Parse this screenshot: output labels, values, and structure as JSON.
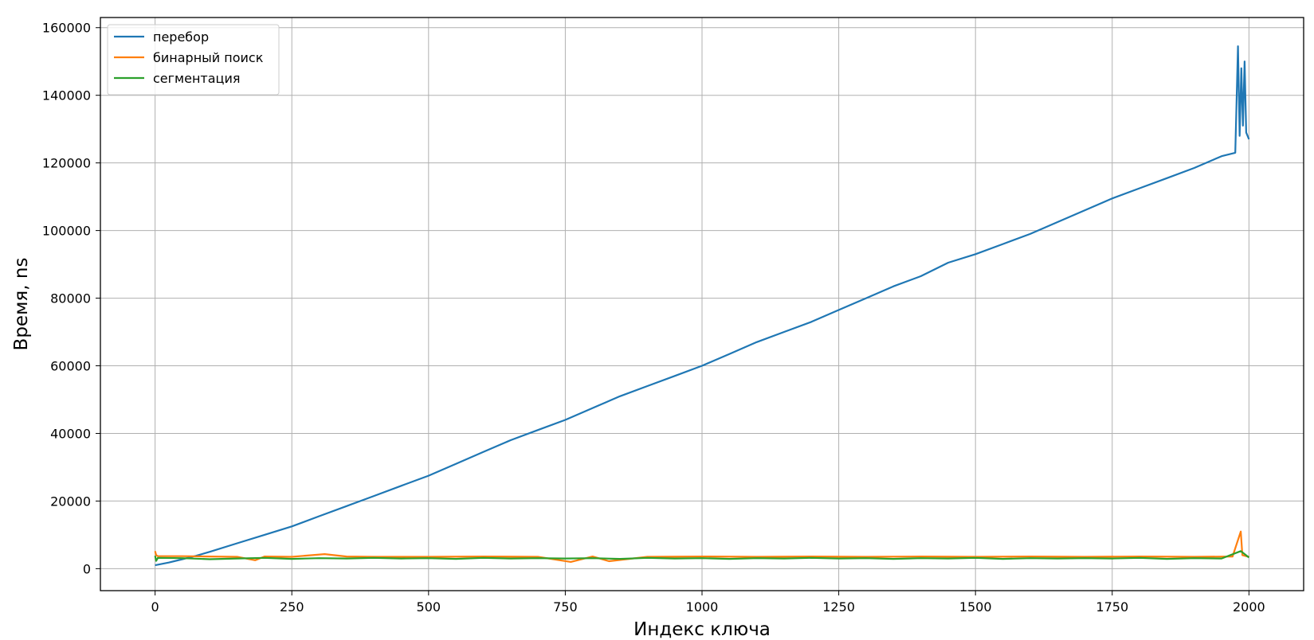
{
  "chart_data": {
    "type": "line",
    "xlabel": "Индекс ключа",
    "ylabel": "Время, ns",
    "xlim": [
      -100,
      2100
    ],
    "ylim": [
      -6500,
      163000
    ],
    "xticks": [
      0,
      250,
      500,
      750,
      1000,
      1250,
      1500,
      1750,
      2000
    ],
    "yticks": [
      0,
      20000,
      40000,
      60000,
      80000,
      100000,
      120000,
      140000,
      160000
    ],
    "xtick_labels": [
      "0",
      "250",
      "500",
      "750",
      "1000",
      "1250",
      "1500",
      "1750",
      "2000"
    ],
    "ytick_labels": [
      "0",
      "20000",
      "40000",
      "60000",
      "80000",
      "100000",
      "120000",
      "140000",
      "160000"
    ],
    "grid": true,
    "legend_position": "top-left",
    "series": [
      {
        "name": "перебор",
        "color": "#1f77b4",
        "x": [
          0,
          25,
          50,
          75,
          100,
          150,
          200,
          250,
          300,
          350,
          400,
          450,
          500,
          550,
          600,
          650,
          700,
          750,
          800,
          850,
          900,
          950,
          1000,
          1050,
          1100,
          1150,
          1200,
          1250,
          1300,
          1350,
          1400,
          1450,
          1500,
          1550,
          1600,
          1650,
          1700,
          1750,
          1800,
          1850,
          1900,
          1950,
          1975,
          1980,
          1983,
          1986,
          1989,
          1992,
          1995,
          2000
        ],
        "y": [
          1000,
          1800,
          2800,
          3800,
          5000,
          7500,
          10000,
          12500,
          15500,
          18500,
          21500,
          24500,
          27500,
          31000,
          34500,
          38000,
          41000,
          44000,
          47500,
          51000,
          54000,
          57000,
          60000,
          63500,
          67000,
          70000,
          73000,
          76500,
          80000,
          83500,
          86500,
          90500,
          93000,
          96000,
          99000,
          102500,
          106000,
          109500,
          112500,
          115500,
          118500,
          122000,
          123000,
          154500,
          128000,
          148000,
          131000,
          150000,
          129000,
          127000
        ]
      },
      {
        "name": "бинарный поиск",
        "color": "#ff7f0e",
        "x": [
          0,
          2,
          5,
          50,
          100,
          150,
          183,
          200,
          250,
          310,
          350,
          400,
          500,
          600,
          700,
          760,
          800,
          830,
          900,
          1000,
          1100,
          1200,
          1300,
          1400,
          1500,
          1600,
          1700,
          1800,
          1900,
          1970,
          1985,
          1988,
          2000
        ],
        "y": [
          5200,
          4000,
          3700,
          3700,
          3600,
          3500,
          2500,
          3600,
          3500,
          4300,
          3600,
          3500,
          3500,
          3600,
          3500,
          2000,
          3600,
          2200,
          3500,
          3600,
          3500,
          3600,
          3500,
          3600,
          3500,
          3600,
          3500,
          3600,
          3500,
          3600,
          11000,
          4000,
          3500
        ]
      },
      {
        "name": "сегментация",
        "color": "#2ca02c",
        "x": [
          0,
          2,
          5,
          50,
          100,
          150,
          200,
          250,
          300,
          350,
          400,
          450,
          500,
          550,
          600,
          650,
          700,
          750,
          800,
          850,
          900,
          950,
          1000,
          1050,
          1100,
          1150,
          1200,
          1250,
          1300,
          1350,
          1400,
          1450,
          1500,
          1550,
          1600,
          1650,
          1700,
          1750,
          1800,
          1850,
          1900,
          1950,
          1985,
          2000
        ],
        "y": [
          3800,
          2300,
          3200,
          3100,
          2800,
          3000,
          3200,
          2900,
          3100,
          3000,
          3200,
          3000,
          3100,
          2900,
          3200,
          3000,
          3100,
          3000,
          3100,
          2900,
          3200,
          3000,
          3100,
          2900,
          3100,
          3000,
          3200,
          3000,
          3100,
          2900,
          3100,
          3000,
          3200,
          2900,
          3100,
          3000,
          3100,
          3000,
          3200,
          2900,
          3100,
          3000,
          5200,
          3300
        ]
      }
    ]
  }
}
